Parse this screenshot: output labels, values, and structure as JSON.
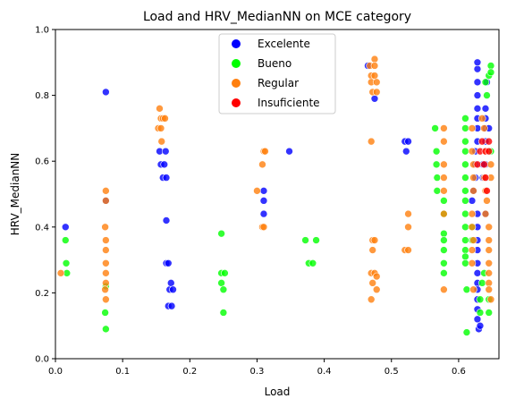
{
  "chart_data": {
    "type": "scatter",
    "title": "Load and HRV_MedianNN on MCE category",
    "xlabel": "Load",
    "ylabel": "HRV_MedianNN",
    "xlim": [
      0.0,
      0.66
    ],
    "ylim": [
      0.0,
      1.0
    ],
    "xticks": [
      "0.0",
      "0.1",
      "0.2",
      "0.3",
      "0.4",
      "0.5",
      "0.6"
    ],
    "yticks": [
      "0.0",
      "0.2",
      "0.4",
      "0.6",
      "0.8",
      "1.0"
    ],
    "grid": false,
    "legend_position": "top-center",
    "series": [
      {
        "name": "Excelente",
        "color": "#0000ff",
        "points": [
          [
            0.015,
            0.4
          ],
          [
            0.075,
            0.81
          ],
          [
            0.075,
            0.48
          ],
          [
            0.155,
            0.63
          ],
          [
            0.157,
            0.59
          ],
          [
            0.16,
            0.55
          ],
          [
            0.162,
            0.59
          ],
          [
            0.164,
            0.63
          ],
          [
            0.165,
            0.55
          ],
          [
            0.165,
            0.42
          ],
          [
            0.165,
            0.29
          ],
          [
            0.168,
            0.29
          ],
          [
            0.17,
            0.21
          ],
          [
            0.172,
            0.23
          ],
          [
            0.175,
            0.21
          ],
          [
            0.168,
            0.16
          ],
          [
            0.173,
            0.16
          ],
          [
            0.31,
            0.51
          ],
          [
            0.31,
            0.48
          ],
          [
            0.31,
            0.44
          ],
          [
            0.348,
            0.63
          ],
          [
            0.465,
            0.89
          ],
          [
            0.475,
            0.79
          ],
          [
            0.52,
            0.66
          ],
          [
            0.525,
            0.66
          ],
          [
            0.522,
            0.63
          ],
          [
            0.62,
            0.48
          ],
          [
            0.622,
            0.51
          ],
          [
            0.625,
            0.55
          ],
          [
            0.625,
            0.59
          ],
          [
            0.625,
            0.63
          ],
          [
            0.628,
            0.66
          ],
          [
            0.628,
            0.7
          ],
          [
            0.628,
            0.73
          ],
          [
            0.628,
            0.76
          ],
          [
            0.628,
            0.8
          ],
          [
            0.628,
            0.84
          ],
          [
            0.628,
            0.88
          ],
          [
            0.628,
            0.9
          ],
          [
            0.628,
            0.44
          ],
          [
            0.628,
            0.4
          ],
          [
            0.628,
            0.36
          ],
          [
            0.628,
            0.33
          ],
          [
            0.628,
            0.29
          ],
          [
            0.628,
            0.26
          ],
          [
            0.628,
            0.23
          ],
          [
            0.628,
            0.21
          ],
          [
            0.628,
            0.18
          ],
          [
            0.628,
            0.15
          ],
          [
            0.628,
            0.12
          ],
          [
            0.63,
            0.09
          ],
          [
            0.632,
            0.1
          ],
          [
            0.64,
            0.76
          ],
          [
            0.64,
            0.73
          ],
          [
            0.64,
            0.7
          ],
          [
            0.64,
            0.66
          ],
          [
            0.64,
            0.59
          ],
          [
            0.64,
            0.55
          ],
          [
            0.64,
            0.44
          ],
          [
            0.645,
            0.7
          ],
          [
            0.642,
            0.84
          ],
          [
            0.636,
            0.59
          ],
          [
            0.636,
            0.55
          ]
        ]
      },
      {
        "name": "Bueno",
        "color": "#00ff00",
        "points": [
          [
            0.015,
            0.36
          ],
          [
            0.016,
            0.29
          ],
          [
            0.017,
            0.26
          ],
          [
            0.075,
            0.22
          ],
          [
            0.074,
            0.14
          ],
          [
            0.075,
            0.09
          ],
          [
            0.247,
            0.38
          ],
          [
            0.247,
            0.26
          ],
          [
            0.247,
            0.23
          ],
          [
            0.25,
            0.21
          ],
          [
            0.252,
            0.26
          ],
          [
            0.25,
            0.14
          ],
          [
            0.372,
            0.36
          ],
          [
            0.377,
            0.29
          ],
          [
            0.383,
            0.29
          ],
          [
            0.388,
            0.36
          ],
          [
            0.565,
            0.7
          ],
          [
            0.567,
            0.63
          ],
          [
            0.567,
            0.59
          ],
          [
            0.568,
            0.55
          ],
          [
            0.568,
            0.51
          ],
          [
            0.578,
            0.48
          ],
          [
            0.578,
            0.44
          ],
          [
            0.578,
            0.38
          ],
          [
            0.578,
            0.36
          ],
          [
            0.578,
            0.33
          ],
          [
            0.578,
            0.29
          ],
          [
            0.578,
            0.26
          ],
          [
            0.61,
            0.73
          ],
          [
            0.61,
            0.7
          ],
          [
            0.61,
            0.66
          ],
          [
            0.61,
            0.63
          ],
          [
            0.61,
            0.59
          ],
          [
            0.61,
            0.55
          ],
          [
            0.61,
            0.51
          ],
          [
            0.61,
            0.48
          ],
          [
            0.61,
            0.44
          ],
          [
            0.61,
            0.4
          ],
          [
            0.61,
            0.36
          ],
          [
            0.61,
            0.33
          ],
          [
            0.61,
            0.31
          ],
          [
            0.61,
            0.29
          ],
          [
            0.612,
            0.21
          ],
          [
            0.612,
            0.08
          ],
          [
            0.62,
            0.4
          ],
          [
            0.62,
            0.36
          ],
          [
            0.632,
            0.18
          ],
          [
            0.632,
            0.14
          ],
          [
            0.635,
            0.23
          ],
          [
            0.638,
            0.26
          ],
          [
            0.64,
            0.84
          ],
          [
            0.642,
            0.8
          ],
          [
            0.645,
            0.86
          ],
          [
            0.648,
            0.89
          ],
          [
            0.648,
            0.87
          ],
          [
            0.645,
            0.14
          ],
          [
            0.645,
            0.18
          ],
          [
            0.648,
            0.63
          ]
        ]
      },
      {
        "name": "Regular",
        "color": "#ff7f0e",
        "points": [
          [
            0.008,
            0.26
          ],
          [
            0.075,
            0.51
          ],
          [
            0.075,
            0.48
          ],
          [
            0.074,
            0.4
          ],
          [
            0.075,
            0.36
          ],
          [
            0.075,
            0.33
          ],
          [
            0.075,
            0.29
          ],
          [
            0.075,
            0.26
          ],
          [
            0.075,
            0.23
          ],
          [
            0.074,
            0.21
          ],
          [
            0.075,
            0.18
          ],
          [
            0.155,
            0.76
          ],
          [
            0.157,
            0.73
          ],
          [
            0.153,
            0.7
          ],
          [
            0.16,
            0.73
          ],
          [
            0.163,
            0.73
          ],
          [
            0.158,
            0.66
          ],
          [
            0.157,
            0.7
          ],
          [
            0.3,
            0.51
          ],
          [
            0.31,
            0.63
          ],
          [
            0.312,
            0.63
          ],
          [
            0.308,
            0.59
          ],
          [
            0.308,
            0.4
          ],
          [
            0.31,
            0.4
          ],
          [
            0.468,
            0.89
          ],
          [
            0.47,
            0.86
          ],
          [
            0.47,
            0.84
          ],
          [
            0.472,
            0.81
          ],
          [
            0.475,
            0.91
          ],
          [
            0.475,
            0.89
          ],
          [
            0.475,
            0.86
          ],
          [
            0.478,
            0.84
          ],
          [
            0.478,
            0.81
          ],
          [
            0.47,
            0.66
          ],
          [
            0.472,
            0.36
          ],
          [
            0.475,
            0.36
          ],
          [
            0.472,
            0.33
          ],
          [
            0.47,
            0.26
          ],
          [
            0.475,
            0.26
          ],
          [
            0.472,
            0.23
          ],
          [
            0.47,
            0.18
          ],
          [
            0.478,
            0.21
          ],
          [
            0.478,
            0.25
          ],
          [
            0.52,
            0.33
          ],
          [
            0.525,
            0.33
          ],
          [
            0.525,
            0.4
          ],
          [
            0.525,
            0.44
          ],
          [
            0.578,
            0.59
          ],
          [
            0.578,
            0.55
          ],
          [
            0.578,
            0.51
          ],
          [
            0.578,
            0.44
          ],
          [
            0.578,
            0.21
          ],
          [
            0.578,
            0.7
          ],
          [
            0.578,
            0.66
          ],
          [
            0.62,
            0.7
          ],
          [
            0.62,
            0.63
          ],
          [
            0.622,
            0.59
          ],
          [
            0.622,
            0.55
          ],
          [
            0.622,
            0.51
          ],
          [
            0.62,
            0.44
          ],
          [
            0.62,
            0.4
          ],
          [
            0.622,
            0.36
          ],
          [
            0.62,
            0.33
          ],
          [
            0.62,
            0.29
          ],
          [
            0.622,
            0.21
          ],
          [
            0.635,
            0.73
          ],
          [
            0.638,
            0.7
          ],
          [
            0.64,
            0.63
          ],
          [
            0.638,
            0.55
          ],
          [
            0.64,
            0.51
          ],
          [
            0.642,
            0.48
          ],
          [
            0.64,
            0.44
          ],
          [
            0.645,
            0.4
          ],
          [
            0.645,
            0.36
          ],
          [
            0.645,
            0.33
          ],
          [
            0.645,
            0.29
          ],
          [
            0.645,
            0.26
          ],
          [
            0.645,
            0.23
          ],
          [
            0.645,
            0.21
          ],
          [
            0.648,
            0.18
          ],
          [
            0.648,
            0.59
          ],
          [
            0.648,
            0.55
          ]
        ]
      },
      {
        "name": "Insuficiente",
        "color": "#ff0000",
        "points": [
          [
            0.628,
            0.59
          ],
          [
            0.632,
            0.63
          ],
          [
            0.635,
            0.66
          ],
          [
            0.638,
            0.59
          ],
          [
            0.64,
            0.63
          ],
          [
            0.64,
            0.55
          ],
          [
            0.642,
            0.51
          ],
          [
            0.645,
            0.63
          ],
          [
            0.645,
            0.66
          ]
        ]
      }
    ]
  }
}
